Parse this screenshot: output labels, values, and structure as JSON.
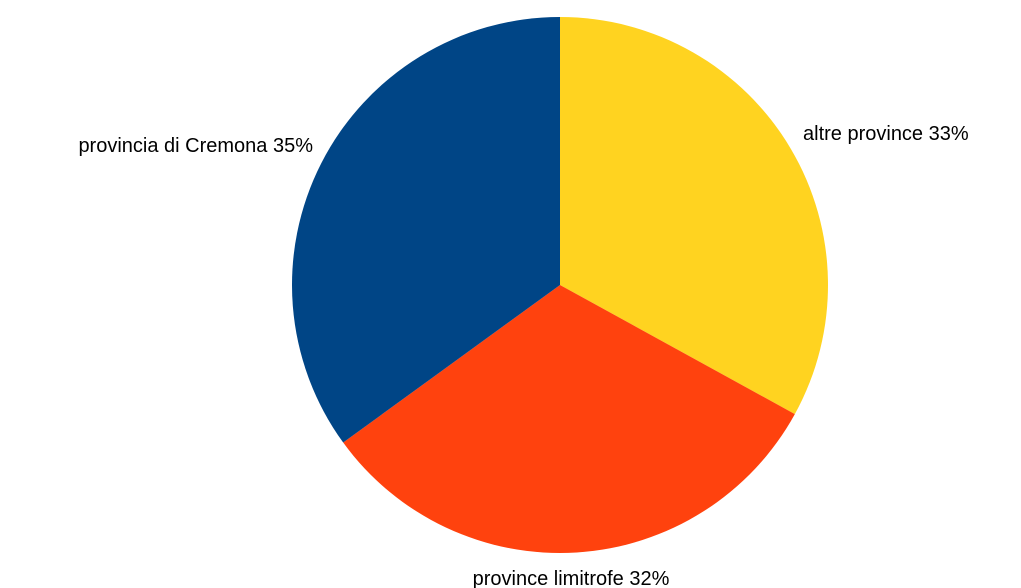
{
  "chart_data": {
    "type": "pie",
    "title": "",
    "start_angle_deg": 0,
    "direction": "clockwise",
    "slices": [
      {
        "label": "altre province 33%",
        "value": 33,
        "color": "#FFD320"
      },
      {
        "label": "province limitrofe 32%",
        "value": 32,
        "color": "#FF420E"
      },
      {
        "label": "provincia di Cremona 35%",
        "value": 35,
        "color": "#004586"
      }
    ]
  }
}
